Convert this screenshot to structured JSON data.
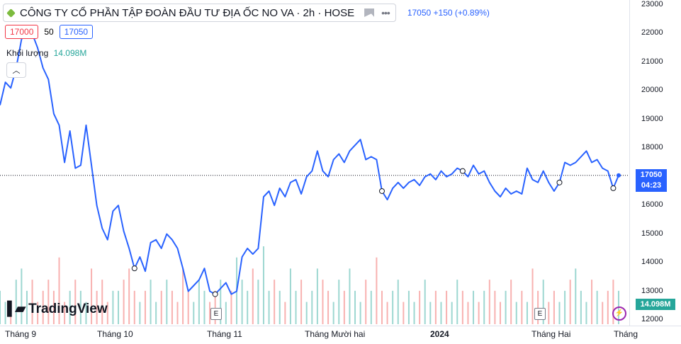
{
  "header": {
    "title": "CÔNG TY CỔ PHẦN TẬP ĐOÀN ĐẦU TƯ ĐỊA ỐC NO VA · 2h · HOSE",
    "last_price": "17050",
    "change": "+150 (+0.89%)"
  },
  "ohlc": {
    "bid": "17000",
    "spread": "50",
    "ask": "17050"
  },
  "volume": {
    "label": "Khối lượng",
    "value": "14.098M"
  },
  "logo": {
    "text": "TradingView"
  },
  "price_tag": {
    "price": "17050",
    "countdown": "04:23"
  },
  "vol_tag": "14.098M",
  "events": [
    {
      "label": "E"
    },
    {
      "label": "E"
    }
  ],
  "colors": {
    "line": "#2962ff",
    "up_vol": "#26a69a",
    "down_vol": "#ef5350",
    "accent": "#2962ff"
  },
  "icons": [
    "logo-dot-icon",
    "flag-icon",
    "more-dots-icon",
    "chevron-up-icon",
    "lightning-icon"
  ],
  "chart_data": {
    "type": "line",
    "y_ticks": [
      "23000",
      "22000",
      "21000",
      "20000",
      "19000",
      "18000",
      "17000",
      "16000",
      "15000",
      "14000",
      "13000",
      "12000"
    ],
    "ylim": [
      12000,
      23000
    ],
    "x_labels": [
      "Tháng 9",
      "Tháng 10",
      "Tháng 11",
      "Tháng Mười hai",
      "2024",
      "Tháng Hai",
      "Tháng"
    ],
    "x_labels_bold": [
      false,
      false,
      false,
      false,
      true,
      false,
      false
    ],
    "current_price": 17050,
    "series": [
      {
        "values": [
          19500,
          20300,
          20100,
          20800,
          21800,
          22100,
          22000,
          21500,
          20800,
          20400,
          19200,
          18800,
          17500,
          18600,
          17300,
          17400,
          18800,
          17400,
          16000,
          15200,
          14800,
          15800,
          16000,
          15100,
          14500,
          13800,
          14200,
          13700,
          14700,
          14800,
          14500,
          15000,
          14800,
          14500,
          13800,
          13000,
          13200,
          13400,
          13800,
          13000,
          12900,
          13100,
          13300,
          12900,
          13000,
          14200,
          14500,
          14300,
          14500,
          16300,
          16500,
          16000,
          16600,
          16300,
          16800,
          16900,
          16400,
          17000,
          17200,
          17900,
          17200,
          17000,
          17600,
          17800,
          17500,
          17900,
          18100,
          18300,
          17600,
          17700,
          17600,
          16500,
          16200,
          16600,
          16800,
          16600,
          16800,
          16900,
          16700,
          17000,
          17100,
          16900,
          17200,
          17000,
          17100,
          17300,
          17200,
          17000,
          17400,
          17100,
          17200,
          16800,
          16500,
          16300,
          16600,
          16400,
          16500,
          16400,
          17300,
          16900,
          16800,
          17200,
          16800,
          16500,
          16800,
          17500,
          17400,
          17500,
          17700,
          17900,
          17500,
          17600,
          17300,
          17200,
          16600,
          17050
        ]
      }
    ],
    "volumes": [
      3,
      2,
      2,
      4,
      5,
      3,
      4,
      2,
      3,
      4,
      3,
      6,
      2,
      3,
      4,
      3,
      2,
      5,
      3,
      4,
      2,
      3,
      3,
      4,
      5,
      3,
      2,
      3,
      4,
      2,
      3,
      4,
      3,
      2,
      5,
      3,
      2,
      4,
      3,
      2,
      3,
      4,
      2,
      3,
      6,
      4,
      3,
      5,
      4,
      7,
      3,
      4,
      3,
      2,
      5,
      3,
      4,
      2,
      3,
      5,
      4,
      3,
      2,
      4,
      3,
      5,
      3,
      2,
      4,
      3,
      6,
      3,
      2,
      3,
      4,
      2,
      3,
      2,
      3,
      4,
      2,
      3,
      2,
      3,
      2,
      4,
      3,
      2,
      3,
      2,
      3,
      4,
      3,
      2,
      3,
      4,
      2,
      3,
      2,
      5,
      3,
      4,
      2,
      3,
      2,
      3,
      4,
      5,
      3,
      2,
      4,
      3,
      2,
      3,
      4,
      3
    ],
    "markers": [
      6,
      25,
      40,
      71,
      86,
      104,
      114
    ]
  }
}
